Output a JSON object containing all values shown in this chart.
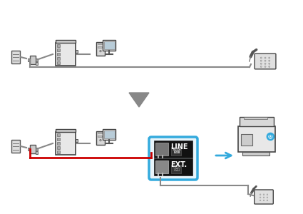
{
  "bg_color": "#ffffff",
  "arrow_color": "#777777",
  "red_line_color": "#cc0000",
  "gray_line_color": "#888888",
  "dark_line_color": "#333333",
  "line_box_border": "#33aadd",
  "line_label": "LINE",
  "ext_label": "EXT.",
  "fig_width": 4.25,
  "fig_height": 3.0
}
